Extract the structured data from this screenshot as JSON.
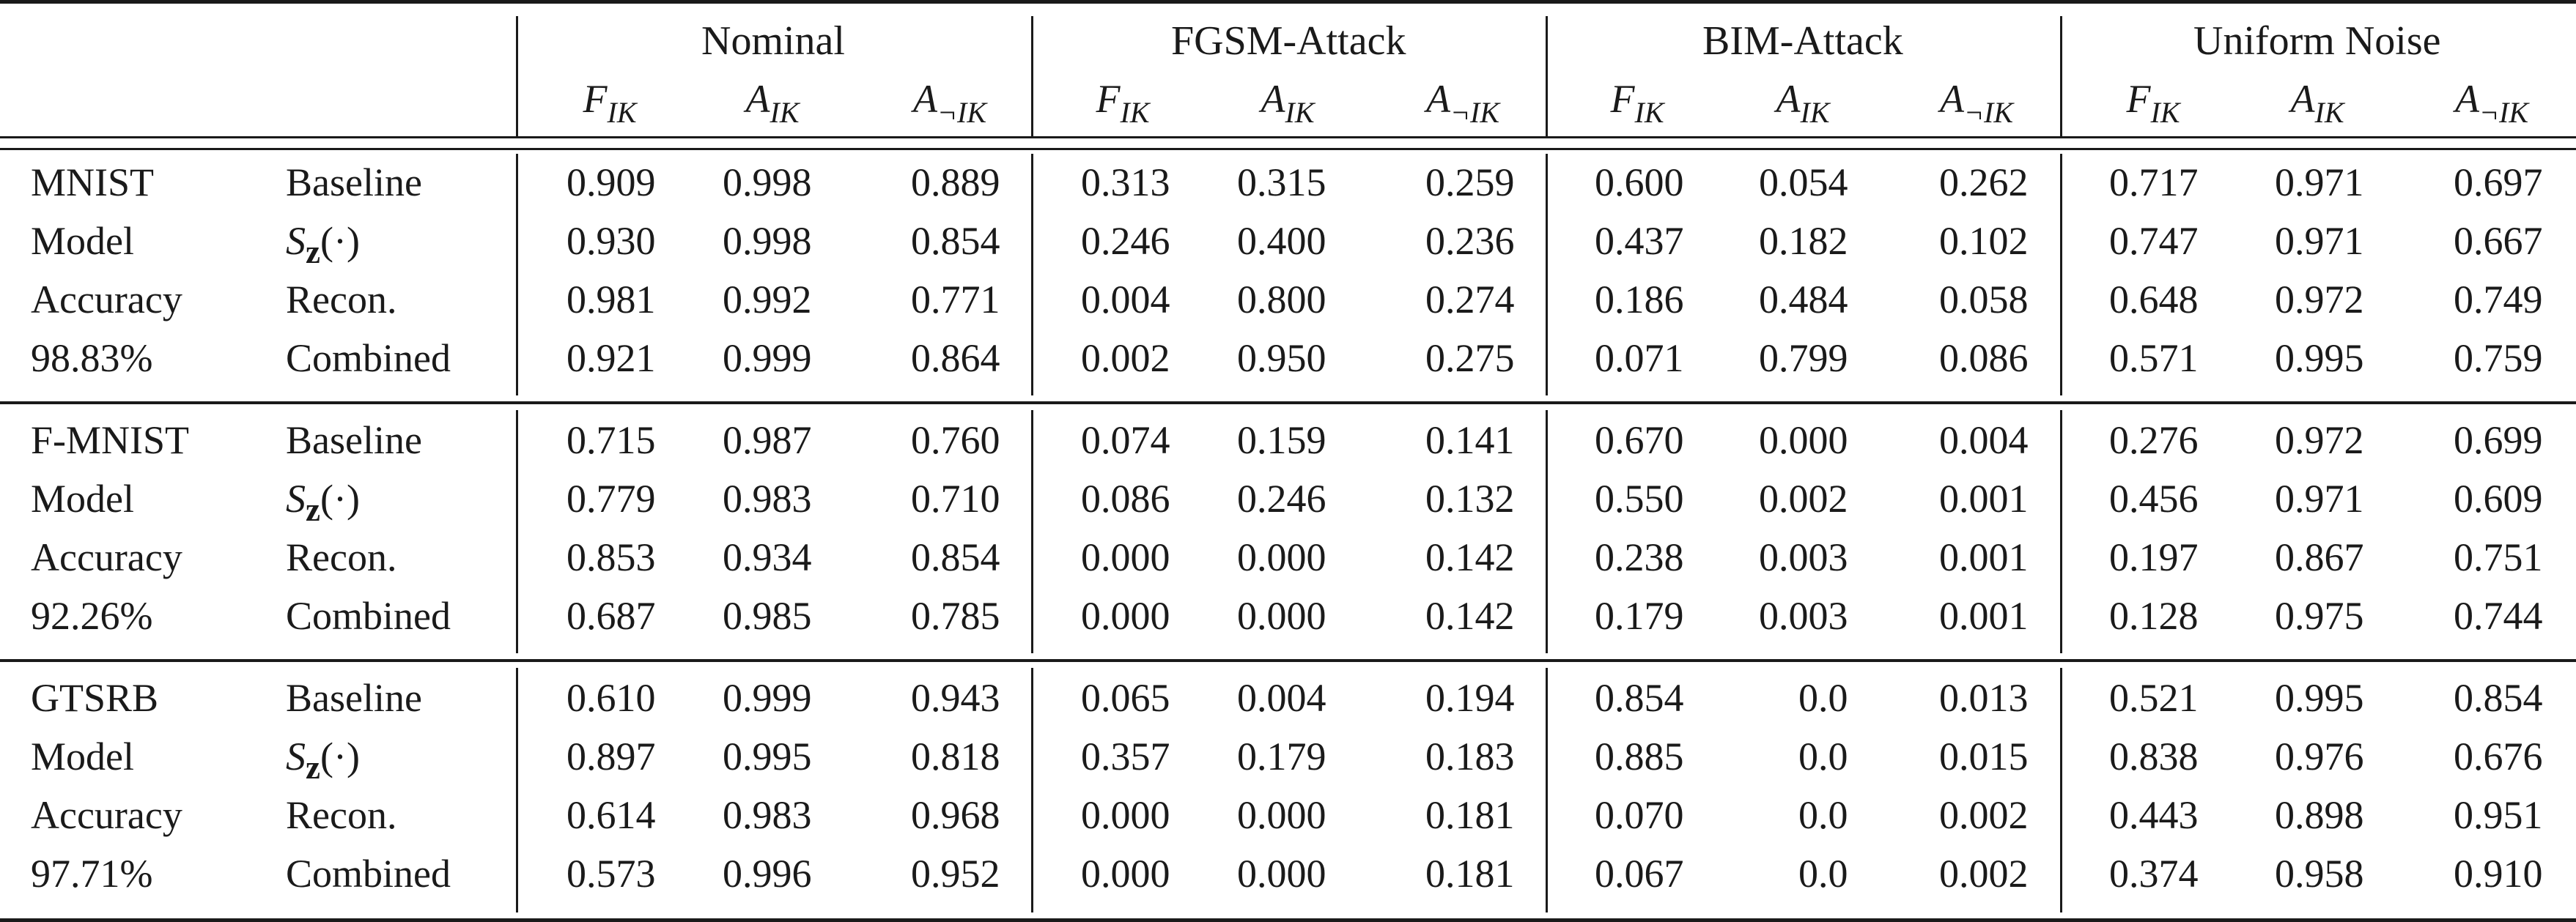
{
  "table": {
    "groups": [
      "Nominal",
      "FGSM-Attack",
      "BIM-Attack",
      "Uniform Noise"
    ],
    "sub_headers": [
      {
        "sym": "F",
        "sub": "IK"
      },
      {
        "sym": "A",
        "sub": "IK"
      },
      {
        "sym": "A",
        "sub": "¬IK"
      }
    ],
    "blocks": [
      {
        "dataset": "MNIST",
        "info": [
          "MNIST",
          "Model",
          "Accuracy",
          "98.83%"
        ],
        "rows": [
          {
            "method": "Baseline",
            "values": [
              "0.909",
              "0.998",
              "0.889",
              "0.313",
              "0.315",
              "0.259",
              "0.600",
              "0.054",
              "0.262",
              "0.717",
              "0.971",
              "0.697"
            ]
          },
          {
            "method": "S",
            "method_sub": "z",
            "method_arg": "(·)",
            "values": [
              "0.930",
              "0.998",
              "0.854",
              "0.246",
              "0.400",
              "0.236",
              "0.437",
              "0.182",
              "0.102",
              "0.747",
              "0.971",
              "0.667"
            ]
          },
          {
            "method": "Recon.",
            "values": [
              "0.981",
              "0.992",
              "0.771",
              "0.004",
              "0.800",
              "0.274",
              "0.186",
              "0.484",
              "0.058",
              "0.648",
              "0.972",
              "0.749"
            ]
          },
          {
            "method": "Combined",
            "values": [
              "0.921",
              "0.999",
              "0.864",
              "0.002",
              "0.950",
              "0.275",
              "0.071",
              "0.799",
              "0.086",
              "0.571",
              "0.995",
              "0.759"
            ]
          }
        ]
      },
      {
        "dataset": "F-MNIST",
        "info": [
          "F-MNIST",
          "Model",
          "Accuracy",
          "92.26%"
        ],
        "rows": [
          {
            "method": "Baseline",
            "values": [
              "0.715",
              "0.987",
              "0.760",
              "0.074",
              "0.159",
              "0.141",
              "0.670",
              "0.000",
              "0.004",
              "0.276",
              "0.972",
              "0.699"
            ]
          },
          {
            "method": "S",
            "method_sub": "z",
            "method_arg": "(·)",
            "values": [
              "0.779",
              "0.983",
              "0.710",
              "0.086",
              "0.246",
              "0.132",
              "0.550",
              "0.002",
              "0.001",
              "0.456",
              "0.971",
              "0.609"
            ]
          },
          {
            "method": "Recon.",
            "values": [
              "0.853",
              "0.934",
              "0.854",
              "0.000",
              "0.000",
              "0.142",
              "0.238",
              "0.003",
              "0.001",
              "0.197",
              "0.867",
              "0.751"
            ]
          },
          {
            "method": "Combined",
            "values": [
              "0.687",
              "0.985",
              "0.785",
              "0.000",
              "0.000",
              "0.142",
              "0.179",
              "0.003",
              "0.001",
              "0.128",
              "0.975",
              "0.744"
            ]
          }
        ]
      },
      {
        "dataset": "GTSRB",
        "info": [
          "GTSRB",
          "Model",
          "Accuracy",
          "97.71%"
        ],
        "rows": [
          {
            "method": "Baseline",
            "values": [
              "0.610",
              "0.999",
              "0.943",
              "0.065",
              "0.004",
              "0.194",
              "0.854",
              "0.0",
              "0.013",
              "0.521",
              "0.995",
              "0.854"
            ]
          },
          {
            "method": "S",
            "method_sub": "z",
            "method_arg": "(·)",
            "values": [
              "0.897",
              "0.995",
              "0.818",
              "0.357",
              "0.179",
              "0.183",
              "0.885",
              "0.0",
              "0.015",
              "0.838",
              "0.976",
              "0.676"
            ]
          },
          {
            "method": "Recon.",
            "values": [
              "0.614",
              "0.983",
              "0.968",
              "0.000",
              "0.000",
              "0.181",
              "0.070",
              "0.0",
              "0.002",
              "0.443",
              "0.898",
              "0.951"
            ]
          },
          {
            "method": "Combined",
            "values": [
              "0.573",
              "0.996",
              "0.952",
              "0.000",
              "0.000",
              "0.181",
              "0.067",
              "0.0",
              "0.002",
              "0.374",
              "0.958",
              "0.910"
            ]
          }
        ]
      }
    ]
  }
}
